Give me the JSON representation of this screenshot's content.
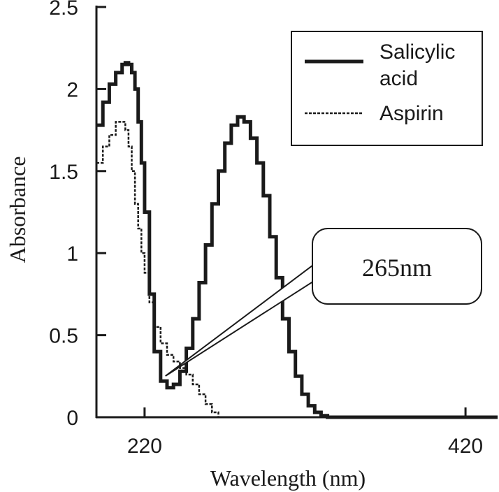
{
  "chart_data": {
    "type": "line",
    "xlabel": "Wavelength (nm)",
    "ylabel": "Absorbance",
    "xlim": [
      190,
      440
    ],
    "ylim": [
      0,
      2.5
    ],
    "x_ticks": [
      220,
      420
    ],
    "y_ticks": [
      0,
      0.5,
      1,
      1.5,
      2,
      2.5
    ],
    "y_tick_labels": [
      "0",
      "0.5",
      "1",
      "1.5",
      "2",
      "2.5"
    ],
    "grid": false,
    "legend": {
      "position": "top-right",
      "entries": [
        "Salicylic acid",
        "Aspirin"
      ]
    },
    "series": [
      {
        "name": "Salicylic acid",
        "style": "solid-thick",
        "color": "#1a1a1a",
        "x": [
          190,
          194,
          198,
          202,
          206,
          208,
          210,
          212,
          214,
          216,
          218,
          220,
          223,
          226,
          230,
          234,
          238,
          242,
          246,
          250,
          254,
          258,
          262,
          266,
          270,
          274,
          278,
          282,
          286,
          290,
          294,
          298,
          302,
          306,
          310,
          314,
          318,
          322,
          326,
          330,
          334,
          338,
          342,
          346,
          350,
          354,
          358,
          362,
          366,
          370,
          380,
          400,
          420,
          440
        ],
        "y": [
          1.78,
          1.92,
          2.03,
          2.1,
          2.15,
          2.16,
          2.15,
          2.1,
          2.0,
          1.8,
          1.55,
          1.25,
          0.75,
          0.4,
          0.22,
          0.18,
          0.2,
          0.28,
          0.42,
          0.6,
          0.82,
          1.05,
          1.3,
          1.5,
          1.67,
          1.78,
          1.83,
          1.8,
          1.7,
          1.55,
          1.35,
          1.1,
          0.85,
          0.6,
          0.4,
          0.25,
          0.14,
          0.07,
          0.03,
          0.01,
          0.0,
          0.0,
          0.0,
          0.0,
          0.0,
          0.0,
          0.0,
          0.0,
          0.0,
          0.0,
          0.0,
          0.0,
          0.0,
          0.0
        ]
      },
      {
        "name": "Aspirin",
        "style": "dashed",
        "color": "#1a1a1a",
        "x": [
          190,
          194,
          198,
          202,
          206,
          208,
          210,
          212,
          214,
          216,
          218,
          220,
          223,
          226,
          230,
          234,
          238,
          242,
          246,
          250,
          254,
          258,
          262,
          266,
          270,
          274,
          278,
          282,
          286,
          290,
          300,
          320,
          340,
          360,
          380,
          400,
          420,
          440
        ],
        "y": [
          1.55,
          1.65,
          1.72,
          1.8,
          1.8,
          1.75,
          1.65,
          1.5,
          1.3,
          1.15,
          1.0,
          0.88,
          0.7,
          0.55,
          0.45,
          0.38,
          0.34,
          0.3,
          0.26,
          0.2,
          0.14,
          0.08,
          0.03,
          0.0,
          0.0,
          0.0,
          0.0,
          0.0,
          0.0,
          0.0,
          0.0,
          0.0,
          0.0,
          0.0,
          0.0,
          0.0,
          0.0,
          0.0
        ]
      }
    ],
    "annotations": [
      {
        "text": "265nm",
        "points_to": {
          "x": 233,
          "y": 0.2
        }
      }
    ]
  }
}
